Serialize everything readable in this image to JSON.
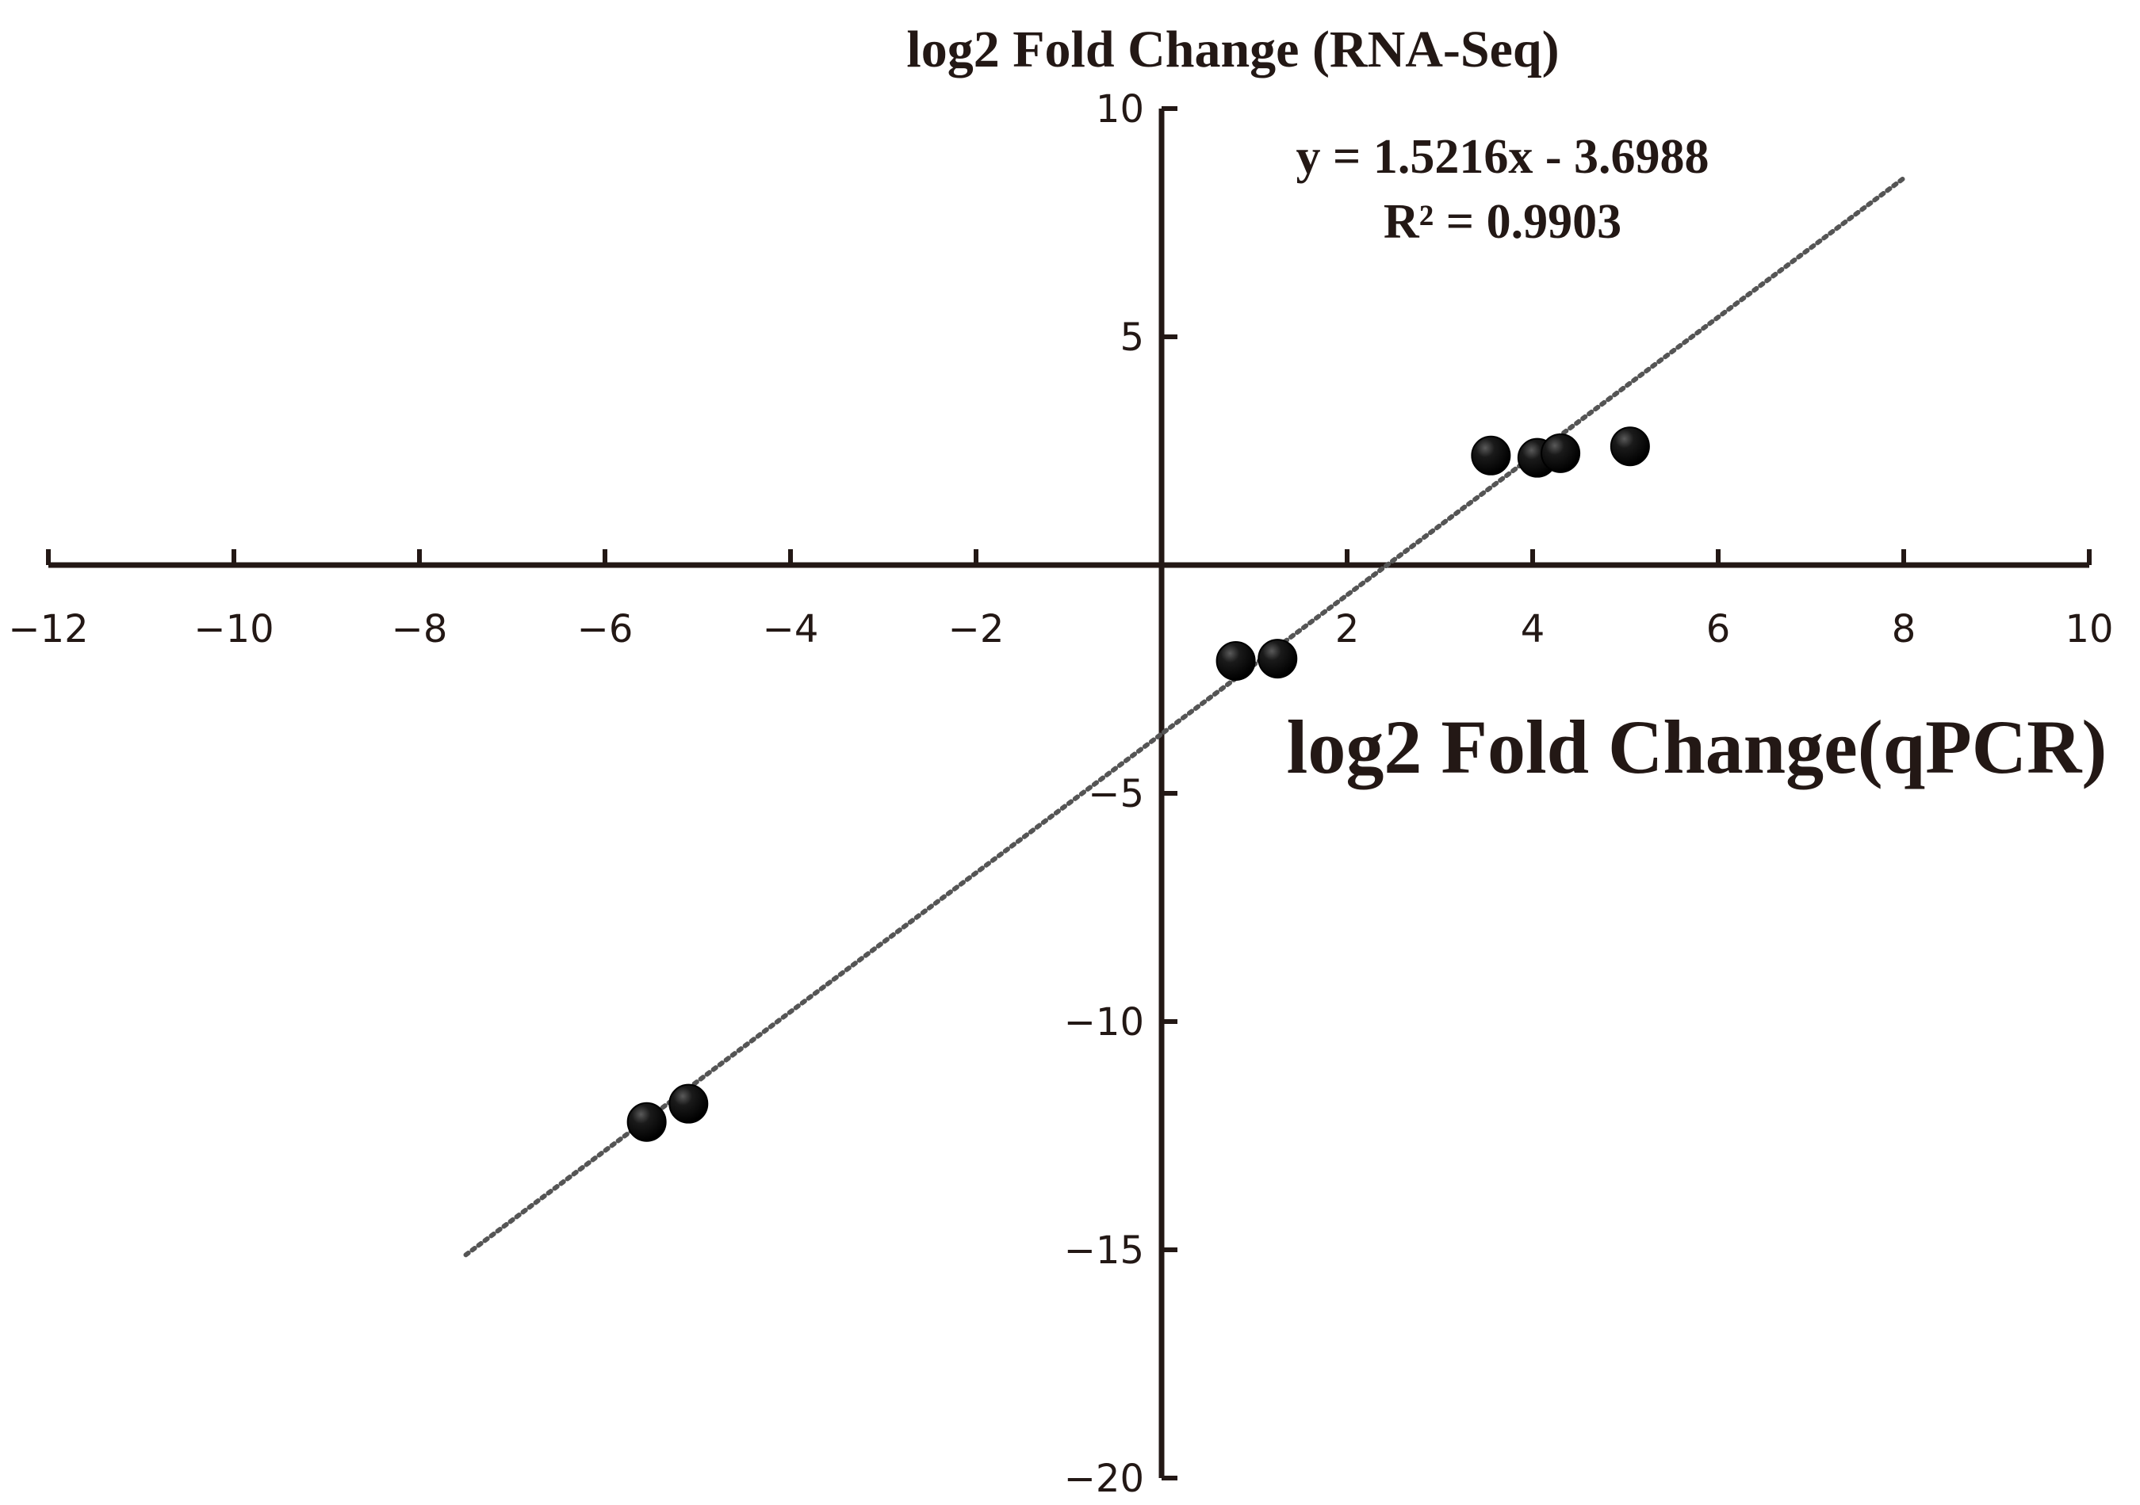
{
  "chart_data": {
    "type": "scatter",
    "title": "",
    "xlabel": "log2 Fold Change(qPCR)",
    "ylabel": "log2 Fold Change (RNA-Seq)",
    "xlim": [
      -12,
      10
    ],
    "ylim": [
      -20,
      10
    ],
    "x_ticks": [
      -12,
      -10,
      -8,
      -6,
      -4,
      -2,
      2,
      4,
      6,
      8,
      10
    ],
    "y_ticks": [
      10,
      5,
      -5,
      -10,
      -15,
      -20
    ],
    "x_tick_labels": [
      "−12",
      "−10",
      "−8",
      "−6",
      "−4",
      "−2",
      "2",
      "4",
      "6",
      "8",
      "10"
    ],
    "y_tick_labels": [
      "10",
      "5",
      "−5",
      "−10",
      "−15",
      "−20"
    ],
    "points": [
      {
        "x": -5.55,
        "y": -12.2
      },
      {
        "x": -5.1,
        "y": -11.8
      },
      {
        "x": 0.8,
        "y": -2.1
      },
      {
        "x": 1.25,
        "y": -2.05
      },
      {
        "x": 3.55,
        "y": 2.4
      },
      {
        "x": 4.05,
        "y": 2.35
      },
      {
        "x": 4.3,
        "y": 2.45
      },
      {
        "x": 5.05,
        "y": 2.6
      }
    ],
    "trendline": {
      "slope": 1.5216,
      "intercept": -3.6988,
      "x_range": [
        -7.5,
        8
      ],
      "equation": "y = 1.5216x - 3.6988",
      "r2": "R² = 0.9903"
    },
    "grid": false,
    "legend": "none",
    "colors": {
      "axis": "#231815",
      "marker": "#000000",
      "trendline": "#555555"
    }
  }
}
